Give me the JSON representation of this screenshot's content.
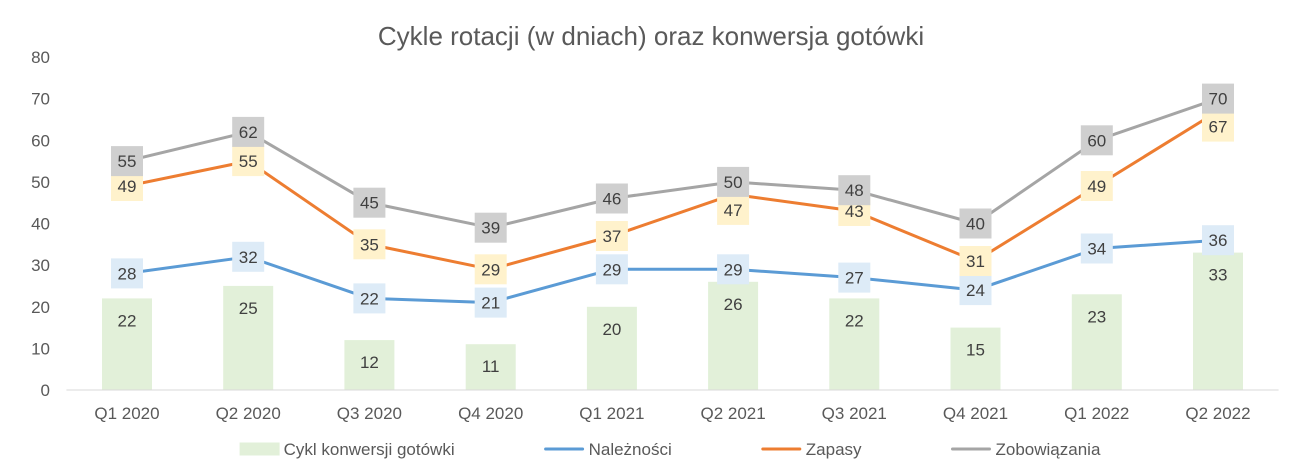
{
  "chart_data": {
    "type": "bar",
    "title": "Cykle rotacji (w dniach) oraz konwersja gotówki",
    "categories": [
      "Q1 2020",
      "Q2 2020",
      "Q3 2020",
      "Q4 2020",
      "Q1 2021",
      "Q2 2021",
      "Q3 2021",
      "Q4 2021",
      "Q1 2022",
      "Q2 2022"
    ],
    "ylim": [
      0,
      80
    ],
    "yticks": [
      0,
      10,
      20,
      30,
      40,
      50,
      60,
      70,
      80
    ],
    "grid": false,
    "legend_position": "bottom",
    "data_labels": true,
    "series": [
      {
        "name": "Cykl konwersji gotówki",
        "type": "bar",
        "values": [
          22,
          25,
          12,
          11,
          20,
          26,
          22,
          15,
          23,
          33
        ],
        "color": "#E2F0D9"
      },
      {
        "name": "Należności",
        "type": "line",
        "values": [
          28,
          32,
          22,
          21,
          29,
          29,
          27,
          24,
          34,
          36
        ],
        "color": "#5B9BD5",
        "label_color": "#DDEBF7"
      },
      {
        "name": "Zapasy",
        "type": "line",
        "values": [
          49,
          55,
          35,
          29,
          37,
          47,
          43,
          31,
          49,
          67
        ],
        "color": "#ED7D31",
        "label_color": "#FFF2CC"
      },
      {
        "name": "Zobowiązania",
        "type": "line",
        "values": [
          55,
          62,
          45,
          39,
          46,
          50,
          48,
          40,
          60,
          70
        ],
        "color": "#A5A5A5",
        "label_color": "#CFCFCF"
      }
    ]
  }
}
